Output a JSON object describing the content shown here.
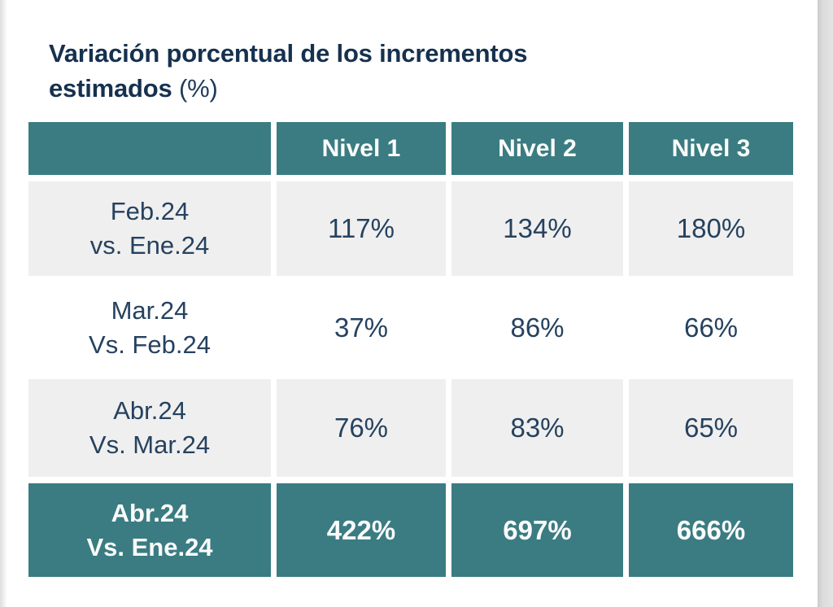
{
  "title": {
    "line1": "Variación porcentual de los incrementos",
    "line2_bold": "estimados",
    "line2_normal": " (%)"
  },
  "table": {
    "corner": "",
    "columns": [
      "Nivel 1",
      "Nivel 2",
      "Nivel 3"
    ],
    "rows": [
      {
        "label_line1": "Feb.24",
        "label_line2": "vs. Ene.24",
        "values": [
          "117%",
          "134%",
          "180%"
        ],
        "highlight": false
      },
      {
        "label_line1": "Mar.24",
        "label_line2": "Vs. Feb.24",
        "values": [
          "37%",
          "86%",
          "66%"
        ],
        "highlight": false
      },
      {
        "label_line1": "Abr.24",
        "label_line2": "Vs. Mar.24",
        "values": [
          "76%",
          "83%",
          "65%"
        ],
        "highlight": false
      },
      {
        "label_line1": "Abr.24",
        "label_line2": "Vs. Ene.24",
        "values": [
          "422%",
          "697%",
          "666%"
        ],
        "highlight": true
      }
    ]
  },
  "colors": {
    "teal": "#3a7c82",
    "row_gray": "#f0efef",
    "navy_text": "#25425f",
    "title_navy": "#16314f",
    "header_text": "#fbfbfb"
  },
  "chart_data": {
    "type": "table",
    "title": "Variación porcentual de los incrementos estimados (%)",
    "columns": [
      "Nivel 1",
      "Nivel 2",
      "Nivel 3"
    ],
    "categories": [
      "Feb.24 vs. Ene.24",
      "Mar.24 Vs. Feb.24",
      "Abr.24 Vs. Mar.24",
      "Abr.24 Vs. Ene.24"
    ],
    "series": [
      {
        "name": "Nivel 1",
        "values": [
          117,
          37,
          76,
          422
        ]
      },
      {
        "name": "Nivel 2",
        "values": [
          134,
          86,
          83,
          697
        ]
      },
      {
        "name": "Nivel 3",
        "values": [
          180,
          66,
          65,
          666
        ]
      }
    ],
    "unit": "%",
    "layout": {
      "header_style": "teal-solid",
      "last_row_highlight": true,
      "striped_rows": true
    }
  }
}
